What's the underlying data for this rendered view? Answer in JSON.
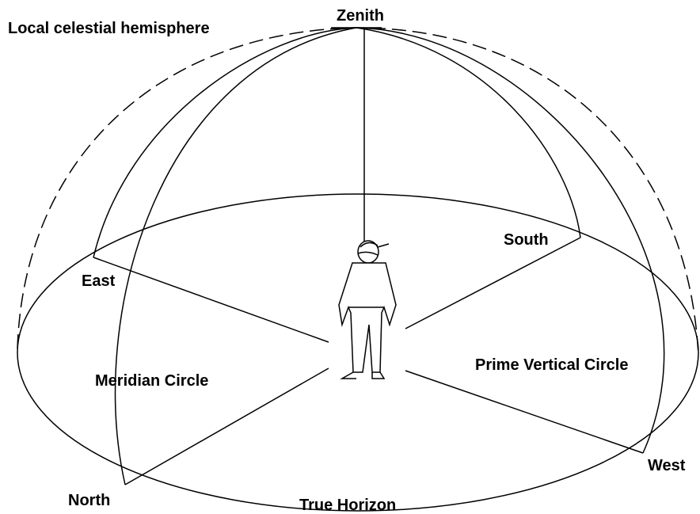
{
  "title": "Local celestial hemisphere",
  "labels": {
    "zenith": "Zenith",
    "south": "South",
    "east": "East",
    "meridian": "Meridian Circle",
    "prime_vertical": "Prime Vertical Circle",
    "west": "West",
    "north": "North",
    "horizon": "True Horizon"
  }
}
